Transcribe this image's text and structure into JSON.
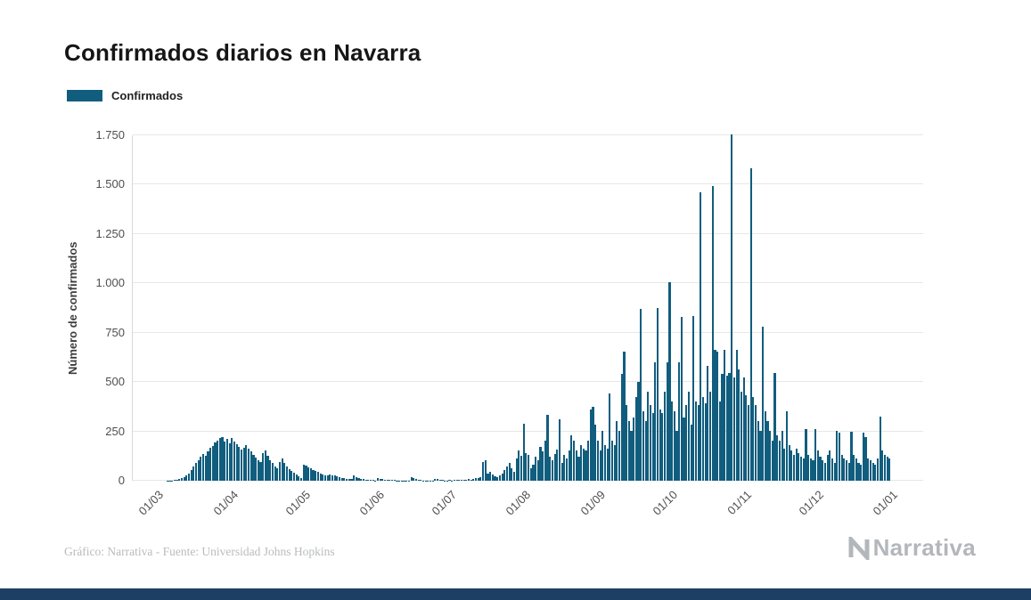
{
  "page": {
    "title": "Confirmados diarios en Navarra",
    "attribution": "Gráfico: Narrativa - Fuente: Universidad Johns Hopkins",
    "brand": "Narrativa"
  },
  "legend": {
    "label": "Confirmados"
  },
  "colors": {
    "bar": "#115d7e",
    "grid": "#e7e7e7",
    "axis_line": "#d9d9d9",
    "footer_band": "#1d3f63",
    "brand_gray": "#b3b7bb"
  },
  "chart_data": {
    "type": "bar",
    "title": "Confirmados diarios en Navarra",
    "series_name": "Confirmados",
    "xlabel": "",
    "ylabel": "Número de confirmados",
    "ylim": [
      0,
      1750
    ],
    "grid": true,
    "legend_position": "top-left",
    "y_ticks": [
      {
        "value": 0,
        "label": "0"
      },
      {
        "value": 250,
        "label": "250"
      },
      {
        "value": 500,
        "label": "500"
      },
      {
        "value": 750,
        "label": "750"
      },
      {
        "value": 1000,
        "label": "1.000"
      },
      {
        "value": 1250,
        "label": "1.250"
      },
      {
        "value": 1500,
        "label": "1.500"
      },
      {
        "value": 1750,
        "label": "1.750"
      }
    ],
    "x_ticks": [
      {
        "day_index": 0,
        "label": "01/03"
      },
      {
        "day_index": 31,
        "label": "01/04"
      },
      {
        "day_index": 61,
        "label": "01/05"
      },
      {
        "day_index": 92,
        "label": "01/06"
      },
      {
        "day_index": 122,
        "label": "01/07"
      },
      {
        "day_index": 153,
        "label": "01/08"
      },
      {
        "day_index": 184,
        "label": "01/09"
      },
      {
        "day_index": 214,
        "label": "01/10"
      },
      {
        "day_index": 245,
        "label": "01/11"
      },
      {
        "day_index": 275,
        "label": "01/12"
      },
      {
        "day_index": 306,
        "label": "01/01"
      }
    ],
    "month_order": [
      "03",
      "04",
      "05",
      "06",
      "07",
      "08",
      "09",
      "10",
      "11",
      "12",
      "01"
    ],
    "values_by_month": {
      "03": [
        0,
        0,
        0,
        0,
        1,
        1,
        2,
        3,
        5,
        8,
        12,
        18,
        25,
        38,
        52,
        70,
        90,
        105,
        120,
        135,
        125,
        150,
        165,
        178,
        192,
        205,
        218,
        222,
        198,
        212,
        188
      ],
      "04": [
        215,
        200,
        185,
        172,
        158,
        168,
        182,
        162,
        148,
        132,
        118,
        106,
        96,
        138,
        152,
        128,
        106,
        90,
        74,
        64,
        96,
        112,
        90,
        74,
        58,
        48,
        40,
        30,
        22,
        15
      ],
      "05": [
        82,
        76,
        68,
        62,
        55,
        48,
        43,
        38,
        33,
        28,
        25,
        33,
        29,
        25,
        21,
        18,
        15,
        12,
        10,
        9,
        8,
        26,
        20,
        15,
        11,
        8,
        6,
        5,
        4,
        3,
        2
      ],
      "06": [
        15,
        11,
        8,
        6,
        4,
        3,
        5,
        3,
        2,
        2,
        1,
        2,
        1,
        1,
        18,
        13,
        9,
        5,
        3,
        2,
        1,
        2,
        1,
        1,
        11,
        8,
        5,
        3,
        2,
        1
      ],
      "07": [
        3,
        2,
        4,
        3,
        5,
        4,
        6,
        5,
        8,
        6,
        10,
        12,
        15,
        20,
        95,
        105,
        38,
        46,
        30,
        24,
        18,
        26,
        36,
        52,
        70,
        92,
        62,
        46,
        112,
        152,
        128
      ],
      "08": [
        288,
        142,
        130,
        62,
        82,
        122,
        102,
        172,
        148,
        202,
        332,
        122,
        104,
        136,
        158,
        312,
        92,
        132,
        112,
        152,
        232,
        202,
        152,
        122,
        182,
        162,
        152,
        204,
        362,
        376,
        282
      ],
      "09": [
        202,
        152,
        252,
        182,
        162,
        442,
        202,
        182,
        302,
        252,
        542,
        652,
        382,
        302,
        252,
        322,
        422,
        502,
        872,
        352,
        302,
        452,
        382,
        342,
        602,
        876,
        362,
        342,
        452,
        602
      ],
      "10": [
        1005,
        402,
        352,
        252,
        602,
        832,
        322,
        382,
        452,
        282,
        834,
        402,
        382,
        1462,
        422,
        392,
        582,
        452,
        1492,
        662,
        652,
        402,
        542,
        662,
        532,
        546,
        1755,
        522,
        662,
        562,
        452
      ],
      "11": [
        522,
        432,
        382,
        1585,
        422,
        382,
        302,
        252,
        782,
        352,
        302,
        252,
        202,
        546,
        232,
        202,
        252,
        162,
        352,
        182,
        152,
        132,
        162,
        142,
        122,
        112,
        262,
        132,
        112,
        102
      ],
      "12": [
        262,
        152,
        122,
        102,
        92,
        132,
        152,
        112,
        92,
        252,
        242,
        132,
        112,
        102,
        92,
        246,
        132,
        112,
        92,
        82,
        242,
        222,
        112,
        102,
        92,
        82,
        112,
        325,
        152,
        132,
        122
      ],
      "01": [
        112
      ]
    }
  }
}
